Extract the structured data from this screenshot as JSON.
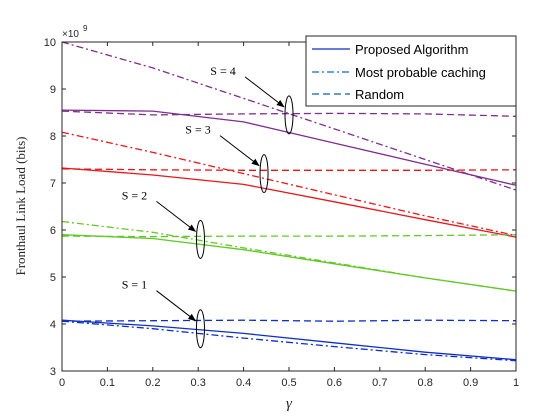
{
  "chart_data": {
    "type": "line",
    "xlabel": "γ",
    "ylabel": "Fronthaul Link Load (bits)",
    "y_exponent_label": "×10",
    "y_exponent": "9",
    "xlim": [
      0,
      1
    ],
    "ylim": [
      3,
      10
    ],
    "x_ticks": [
      "0",
      "0.1",
      "0.2",
      "0.3",
      "0.4",
      "0.5",
      "0.6",
      "0.7",
      "0.8",
      "0.9",
      "1"
    ],
    "y_ticks": [
      "3",
      "4",
      "5",
      "6",
      "7",
      "8",
      "9",
      "10"
    ],
    "grid": false,
    "legend_position": "top-right",
    "legend": [
      {
        "label": "Proposed Algorithm",
        "style": "solid"
      },
      {
        "label": "Most probable caching",
        "style": "dashdot"
      },
      {
        "label": "Random",
        "style": "dashed"
      }
    ],
    "series": [
      {
        "group": "S = 4",
        "method": "Proposed Algorithm",
        "color": "#7e2f8e",
        "style": "solid",
        "x": [
          0,
          0.2,
          0.4,
          0.6,
          0.8,
          1
        ],
        "y": [
          8.55,
          8.53,
          8.3,
          7.85,
          7.4,
          6.95
        ]
      },
      {
        "group": "S = 4",
        "method": "Most probable caching",
        "color": "#7e2f8e",
        "style": "dashdot",
        "x": [
          0,
          0.2,
          0.4,
          0.6,
          0.8,
          1
        ],
        "y": [
          10.0,
          9.45,
          8.8,
          8.15,
          7.5,
          6.85
        ]
      },
      {
        "group": "S = 4",
        "method": "Random",
        "color": "#7e2f8e",
        "style": "dashed",
        "x": [
          0,
          0.2,
          0.4,
          0.6,
          0.8,
          1
        ],
        "y": [
          8.53,
          8.45,
          8.47,
          8.48,
          8.47,
          8.42
        ]
      },
      {
        "group": "S = 3",
        "method": "Proposed Algorithm",
        "color": "#e8171b",
        "style": "solid",
        "x": [
          0,
          0.2,
          0.4,
          0.6,
          0.8,
          1
        ],
        "y": [
          7.32,
          7.17,
          6.97,
          6.6,
          6.22,
          5.85
        ]
      },
      {
        "group": "S = 3",
        "method": "Most probable caching",
        "color": "#e8171b",
        "style": "dashdot",
        "x": [
          0,
          0.2,
          0.4,
          0.6,
          0.8,
          1
        ],
        "y": [
          8.08,
          7.65,
          7.2,
          6.75,
          6.3,
          5.88
        ]
      },
      {
        "group": "S = 3",
        "method": "Random",
        "color": "#e8171b",
        "style": "dashed",
        "x": [
          0,
          0.2,
          0.4,
          0.6,
          0.8,
          1
        ],
        "y": [
          7.3,
          7.28,
          7.27,
          7.27,
          7.27,
          7.28
        ]
      },
      {
        "group": "S = 2",
        "method": "Proposed Algorithm",
        "color": "#63c827",
        "style": "solid",
        "x": [
          0,
          0.2,
          0.4,
          0.6,
          0.8,
          1
        ],
        "y": [
          5.9,
          5.82,
          5.58,
          5.28,
          4.98,
          4.7
        ]
      },
      {
        "group": "S = 2",
        "method": "Most probable caching",
        "color": "#63c827",
        "style": "dashdot",
        "x": [
          0,
          0.2,
          0.4,
          0.6,
          0.8,
          1
        ],
        "y": [
          6.18,
          5.95,
          5.62,
          5.3,
          4.98,
          4.7
        ]
      },
      {
        "group": "S = 2",
        "method": "Random",
        "color": "#63c827",
        "style": "dashed",
        "x": [
          0,
          0.2,
          0.4,
          0.6,
          0.8,
          1
        ],
        "y": [
          5.87,
          5.86,
          5.87,
          5.87,
          5.88,
          5.9
        ]
      },
      {
        "group": "S = 1",
        "method": "Proposed Algorithm",
        "color": "#0f2fc8",
        "style": "solid",
        "x": [
          0,
          0.2,
          0.4,
          0.6,
          0.8,
          1
        ],
        "y": [
          4.08,
          3.96,
          3.8,
          3.6,
          3.4,
          3.24
        ]
      },
      {
        "group": "S = 1",
        "method": "Most probable caching",
        "color": "#0f2fc8",
        "style": "dashdot",
        "x": [
          0,
          0.2,
          0.4,
          0.6,
          0.8,
          1
        ],
        "y": [
          4.06,
          3.9,
          3.7,
          3.52,
          3.35,
          3.22
        ]
      },
      {
        "group": "S = 1",
        "method": "Random",
        "color": "#0f2fc8",
        "style": "dashed",
        "x": [
          0,
          0.2,
          0.4,
          0.6,
          0.8,
          1
        ],
        "y": [
          4.06,
          4.07,
          4.08,
          4.06,
          4.08,
          4.07
        ]
      }
    ],
    "annotations": [
      {
        "label": "S = 4",
        "x_data": 0.5,
        "y_data": 8.45
      },
      {
        "label": "S = 3",
        "x_data": 0.445,
        "y_data": 7.2
      },
      {
        "label": "S = 2",
        "x_data": 0.305,
        "y_data": 5.8
      },
      {
        "label": "S = 1",
        "x_data": 0.305,
        "y_data": 3.9
      }
    ]
  }
}
